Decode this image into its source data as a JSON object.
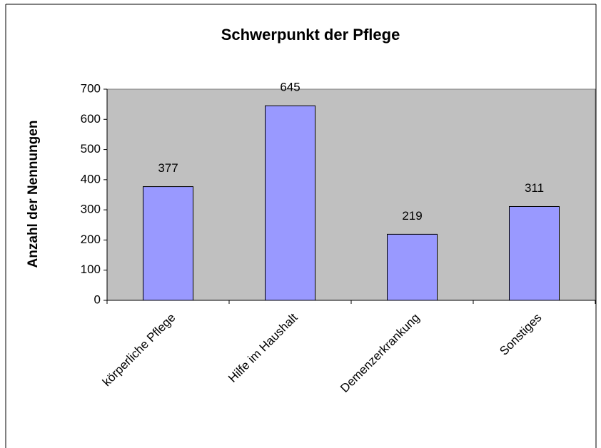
{
  "chart_data": {
    "type": "bar",
    "title": "Schwerpunkt der Pflege",
    "y_label": "Anzahl der Nennungen",
    "categories": [
      "körperliche Pflege",
      "Hilfe im Haushalt",
      "Demenzerkrankung",
      "Sonstiges"
    ],
    "values": [
      377,
      645,
      219,
      311
    ],
    "color": "#9999ff",
    "ylim": [
      0,
      700
    ],
    "yticks": [
      0,
      100,
      200,
      300,
      400,
      500,
      600,
      700
    ],
    "grid": false
  }
}
